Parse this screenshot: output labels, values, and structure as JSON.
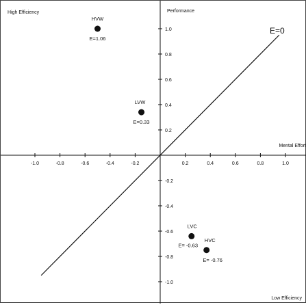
{
  "chart_data": {
    "type": "scatter",
    "title": "",
    "xlabel": "Mental Effort",
    "ylabel": "Performance",
    "xlim": [
      -1.25,
      1.15
    ],
    "ylim": [
      -1.2,
      1.2
    ],
    "x_ticks": [
      {
        "value": -1.0,
        "label": "-1.0"
      },
      {
        "value": -0.8,
        "label": "-0.8"
      },
      {
        "value": -0.6,
        "label": "-0.6"
      },
      {
        "value": -0.4,
        "label": "-0.4"
      },
      {
        "value": -0.2,
        "label": "-0.2"
      },
      {
        "value": 0.2,
        "label": "0.2"
      },
      {
        "value": 0.4,
        "label": "0.4"
      },
      {
        "value": 0.6,
        "label": "0.6"
      },
      {
        "value": 0.8,
        "label": "0.8"
      },
      {
        "value": 1.0,
        "label": "1.0"
      }
    ],
    "y_ticks": [
      {
        "value": 1.0,
        "label": "1.0"
      },
      {
        "value": 0.8,
        "label": "0.8"
      },
      {
        "value": 0.6,
        "label": "0.6"
      },
      {
        "value": 0.4,
        "label": "0.4"
      },
      {
        "value": 0.2,
        "label": "0.2"
      },
      {
        "value": -0.2,
        "label": "-0.2"
      },
      {
        "value": -0.4,
        "label": "-0.4"
      },
      {
        "value": -0.6,
        "label": "-0.6"
      },
      {
        "value": -0.8,
        "label": "-0.8"
      },
      {
        "value": -1.0,
        "label": "-1.0"
      }
    ],
    "points": [
      {
        "name": "HVW",
        "x": -0.5,
        "y": 1.0,
        "e_label": "E=1.06"
      },
      {
        "name": "LVW",
        "x": -0.15,
        "y": 0.34,
        "e_label": "E=0.33"
      },
      {
        "name": "LVC",
        "x": 0.25,
        "y": -0.64,
        "e_label": "E= -0.63"
      },
      {
        "name": "HVC",
        "x": 0.37,
        "y": -0.75,
        "e_label": "E= -0.76"
      }
    ],
    "line": {
      "label": "E=0",
      "x": [
        -0.95,
        0.95
      ],
      "y": [
        -0.95,
        0.95
      ]
    },
    "corner_labels": {
      "top_left": "High Efficiency",
      "bottom_right": "Low Efficiency"
    },
    "grid": false,
    "colors": {
      "ink": "#111111",
      "frame": "#444444"
    }
  }
}
